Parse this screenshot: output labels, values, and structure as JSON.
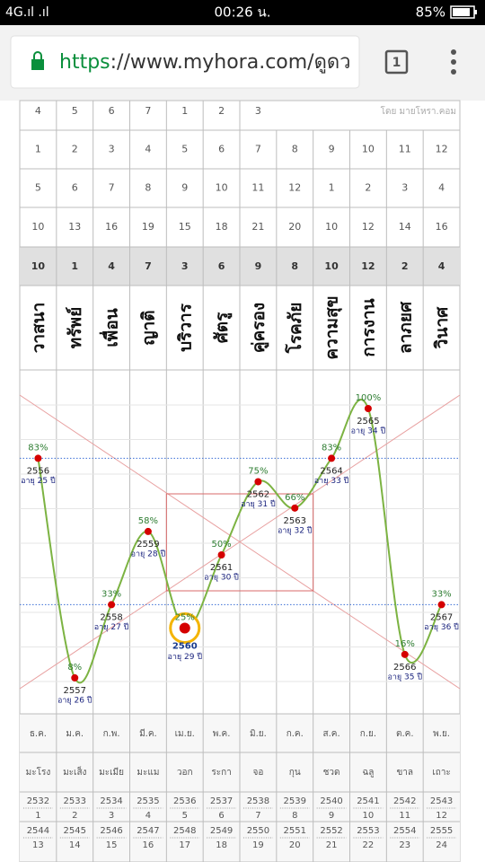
{
  "status_bar": {
    "signal": "4G.ıl .ıl",
    "time": "00:26 น.",
    "battery": "85%"
  },
  "browser": {
    "scheme": "https",
    "url_rest": "://www.myhora.com/ดูดว",
    "tabs": "1"
  },
  "table": {
    "first_row": [
      4,
      5,
      6,
      7,
      1,
      2,
      3
    ],
    "credit": "โดย มายโหรา.คอม",
    "rows": [
      [
        1,
        2,
        3,
        4,
        5,
        6,
        7,
        8,
        9,
        10,
        11,
        12
      ],
      [
        5,
        6,
        7,
        8,
        9,
        10,
        11,
        12,
        1,
        2,
        3,
        4
      ],
      [
        10,
        13,
        16,
        19,
        15,
        18,
        21,
        20,
        10,
        12,
        14,
        16
      ]
    ],
    "totals": [
      10,
      1,
      4,
      7,
      3,
      6,
      9,
      8,
      10,
      12,
      2,
      4
    ],
    "houses": [
      "วาสนา",
      "ทรัพย์",
      "เพื่อน",
      "ญาติ",
      "บริวาร",
      "ศัตรู",
      "คู่ครอง",
      "โรคภัย",
      "ความสุข",
      "การงาน",
      "ลาภยศ",
      "วินาศ"
    ]
  },
  "chart": {
    "points": [
      {
        "percent": 83,
        "percent_label": "83%",
        "year": "2556",
        "age": "อายุ 25 ปี"
      },
      {
        "percent": 8,
        "percent_label": "8%",
        "year": "2557",
        "age": "อายุ 26 ปี"
      },
      {
        "percent": 33,
        "percent_label": "33%",
        "year": "2558",
        "age": "อายุ 27 ปี"
      },
      {
        "percent": 58,
        "percent_label": "58%",
        "year": "2559",
        "age": "อายุ 28 ปี"
      },
      {
        "percent": 25,
        "percent_label": "25%",
        "year": "2560",
        "age": "อายุ 29 ปี",
        "current": true
      },
      {
        "percent": 50,
        "percent_label": "50%",
        "year": "2561",
        "age": "อายุ 30 ปี"
      },
      {
        "percent": 75,
        "percent_label": "75%",
        "year": "2562",
        "age": "อายุ 31 ปี"
      },
      {
        "percent": 66,
        "percent_label": "66%",
        "year": "2563",
        "age": "อายุ 32 ปี"
      },
      {
        "percent": 83,
        "percent_label": "83%",
        "year": "2564",
        "age": "อายุ 33 ปี"
      },
      {
        "percent": 100,
        "percent_label": "100%",
        "year": "2565",
        "age": "อายุ 34 ปี"
      },
      {
        "percent": 16,
        "percent_label": "16%",
        "year": "2566",
        "age": "อายุ 35 ปี"
      },
      {
        "percent": 33,
        "percent_label": "33%",
        "year": "2567",
        "age": "อายุ 36 ปี"
      }
    ]
  },
  "footer": {
    "months": [
      "ธ.ค.",
      "ม.ค.",
      "ก.พ.",
      "มี.ค.",
      "เม.ย.",
      "พ.ค.",
      "มิ.ย.",
      "ก.ค.",
      "ส.ค.",
      "ก.ย.",
      "ต.ค.",
      "พ.ย."
    ],
    "animals": [
      "มะโรง",
      "มะเส็ง",
      "มะเมีย",
      "มะแม",
      "วอก",
      "ระกา",
      "จอ",
      "กุน",
      "ชวด",
      "ฉลู",
      "ขาล",
      "เถาะ"
    ],
    "years": [
      [
        {
          "year": "2532",
          "num": "1"
        },
        {
          "year": "2533",
          "num": "2"
        },
        {
          "year": "2534",
          "num": "3"
        },
        {
          "year": "2535",
          "num": "4"
        },
        {
          "year": "2536",
          "num": "5"
        },
        {
          "year": "2537",
          "num": "6"
        },
        {
          "year": "2538",
          "num": "7"
        },
        {
          "year": "2539",
          "num": "8"
        },
        {
          "year": "2540",
          "num": "9"
        },
        {
          "year": "2541",
          "num": "10"
        },
        {
          "year": "2542",
          "num": "11"
        },
        {
          "year": "2543",
          "num": "12"
        }
      ],
      [
        {
          "year": "2544",
          "num": "13"
        },
        {
          "year": "2545",
          "num": "14"
        },
        {
          "year": "2546",
          "num": "15"
        },
        {
          "year": "2547",
          "num": "16"
        },
        {
          "year": "2548",
          "num": "17"
        },
        {
          "year": "2549",
          "num": "18"
        },
        {
          "year": "2550",
          "num": "19"
        },
        {
          "year": "2551",
          "num": "20"
        },
        {
          "year": "2552",
          "num": "21"
        },
        {
          "year": "2553",
          "num": "22"
        },
        {
          "year": "2554",
          "num": "23"
        },
        {
          "year": "2555",
          "num": "24"
        }
      ]
    ]
  }
}
